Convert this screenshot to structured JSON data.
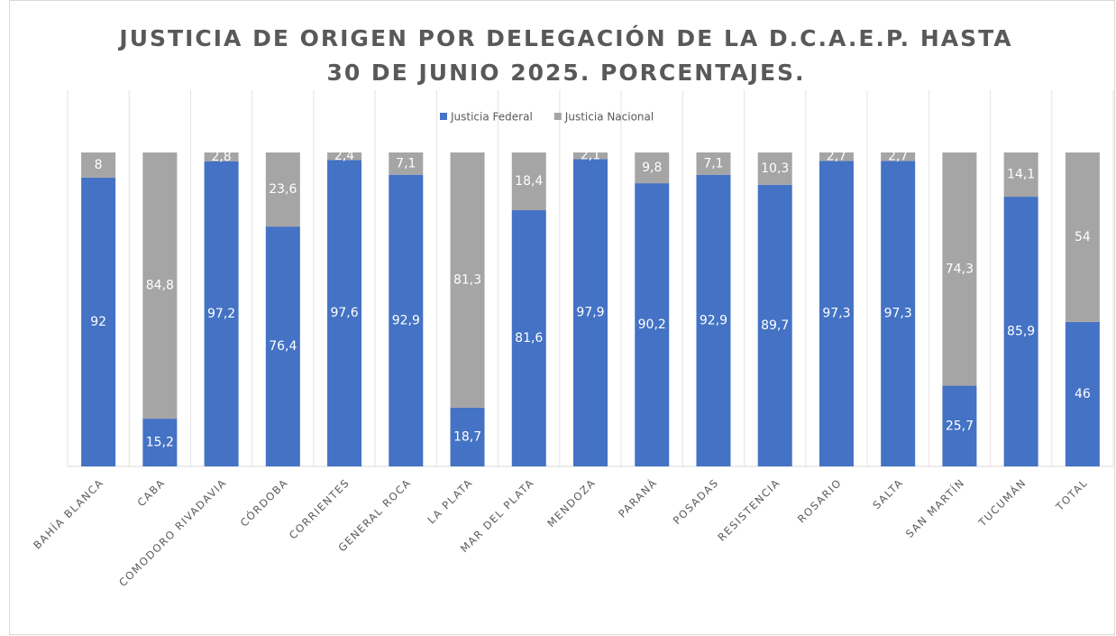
{
  "chart_data": {
    "type": "stacked_bar",
    "title": [
      "JUSTICIA DE ORIGEN POR DELEGACIÓN DE LA D.C.A.E.P. HASTA",
      "30 DE JUNIO 2025. PORCENTAJES."
    ],
    "categories": [
      "BAHÍA BLANCA",
      "CABA",
      "COMODORO RIVADAVIA",
      "CÓRDOBA",
      "CORRIENTES",
      "GENERAL ROCA",
      "LA PLATA",
      "MAR DEL PLATA",
      "MENDOZA",
      "PARANÁ",
      "POSADAS",
      "RESISTENCIA",
      "ROSARIO",
      "SALTA",
      "SAN MARTÍN",
      "TUCUMÁN",
      "TOTAL"
    ],
    "series": [
      {
        "name": "Justicia Federal",
        "color": "#4472c4",
        "values": [
          92,
          15.2,
          97.2,
          76.4,
          97.6,
          92.9,
          18.7,
          81.6,
          97.9,
          90.2,
          92.9,
          89.7,
          97.3,
          97.3,
          25.7,
          85.9,
          46
        ],
        "value_labels": [
          "92",
          "15,2",
          "97,2",
          "76,4",
          "97,6",
          "92,9",
          "18,7",
          "81,6",
          "97,9",
          "90,2",
          "92,9",
          "89,7",
          "97,3",
          "97,3",
          "25,7",
          "85,9",
          "46"
        ]
      },
      {
        "name": "Justicia Nacional",
        "color": "#a5a5a5",
        "values": [
          8,
          84.8,
          2.8,
          23.6,
          2.4,
          7.1,
          81.3,
          18.4,
          2.1,
          9.8,
          7.1,
          10.3,
          2.7,
          2.7,
          74.3,
          14.1,
          54
        ],
        "value_labels": [
          "8",
          "84,8",
          "2,8",
          "23,6",
          "2,4",
          "7,1",
          "81,3",
          "18,4",
          "2,1",
          "9,8",
          "7,1",
          "10,3",
          "2,7",
          "2,7",
          "74,3",
          "14,1",
          "54"
        ]
      }
    ],
    "ylim": [
      0,
      100
    ],
    "legend": "top"
  }
}
